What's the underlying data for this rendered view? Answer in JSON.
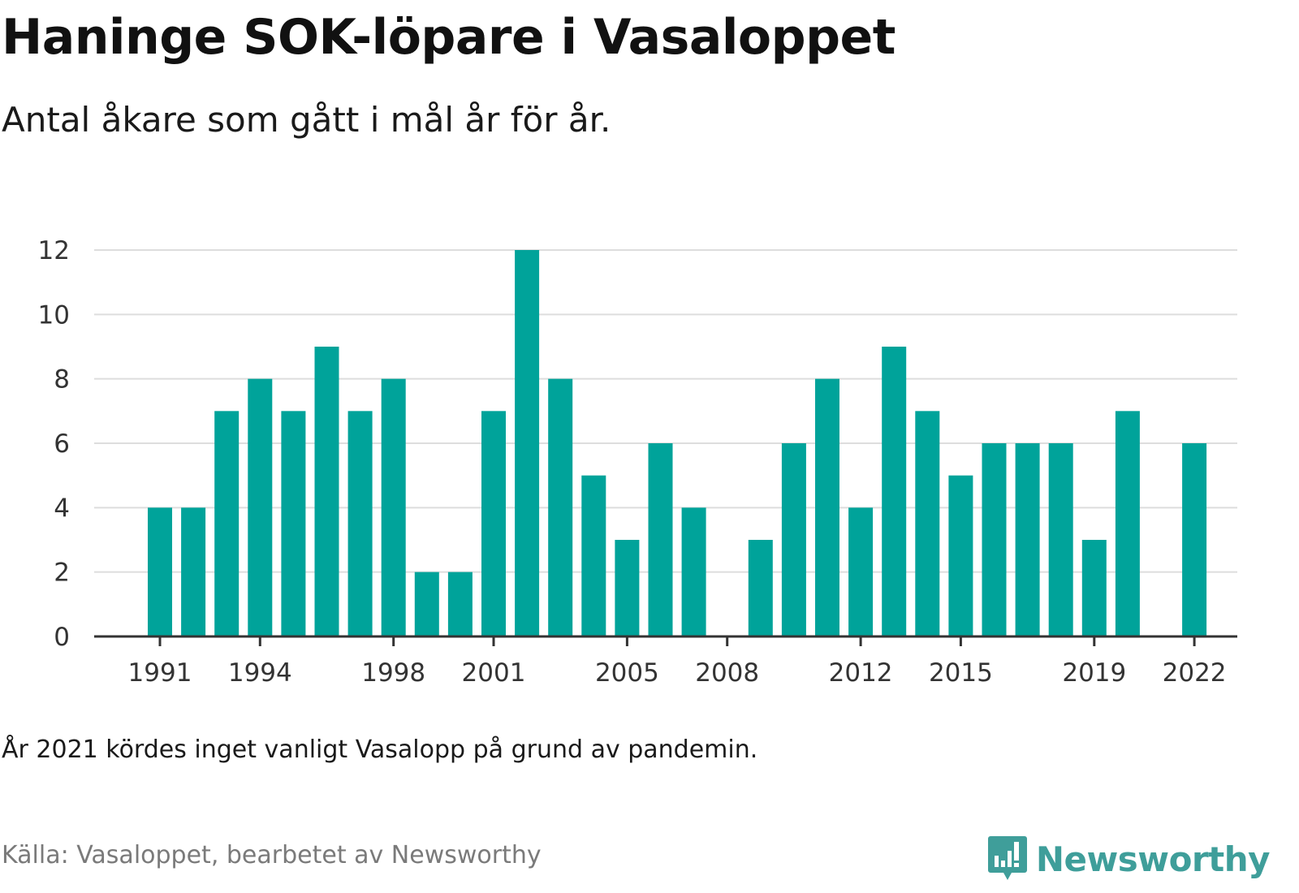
{
  "title": "Haninge SOK-löpare i Vasaloppet",
  "subtitle": "Antal åkare som gått i mål år för år.",
  "note": "År 2021 kördes inget vanligt Vasalopp på grund av pandemin.",
  "source": "Källa: Vasaloppet, bearbetet av Newsworthy",
  "brand": "Newsworthy",
  "colors": {
    "bar": "#00a39a",
    "grid": "#dddddd",
    "axis": "#333333",
    "brand": "#3f9e9a"
  },
  "chart_data": {
    "type": "bar",
    "categories": [
      1991,
      1992,
      1993,
      1994,
      1995,
      1996,
      1997,
      1998,
      1999,
      2000,
      2001,
      2002,
      2003,
      2004,
      2005,
      2006,
      2007,
      2008,
      2009,
      2010,
      2011,
      2012,
      2013,
      2014,
      2015,
      2016,
      2017,
      2018,
      2019,
      2020,
      2021,
      2022
    ],
    "values": [
      4,
      4,
      7,
      8,
      7,
      9,
      7,
      8,
      2,
      2,
      7,
      12,
      8,
      5,
      3,
      6,
      4,
      0,
      3,
      6,
      8,
      4,
      9,
      7,
      5,
      6,
      6,
      6,
      3,
      7,
      0,
      6
    ],
    "x_tick_labels": [
      "1991",
      "1994",
      "1998",
      "2001",
      "2005",
      "2008",
      "2012",
      "2015",
      "2019",
      "2022"
    ],
    "y_ticks": [
      0,
      2,
      4,
      6,
      8,
      10,
      12
    ],
    "ylim": [
      0,
      12
    ],
    "xlabel": "",
    "ylabel": "",
    "grid": true,
    "legend": "none"
  }
}
